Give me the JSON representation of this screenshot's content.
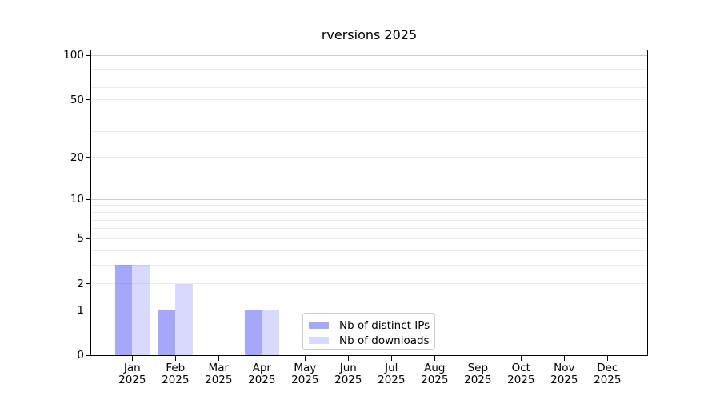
{
  "colors": {
    "background": "#ffffff",
    "axis": "#000000",
    "grid_major": "#cccccc",
    "grid_minor": "#ebebeb",
    "legend_border": "#cccccc",
    "bar_distinct_ips": "rgba(80,80,245,0.50)",
    "bar_downloads": "rgba(80,80,245,0.22)"
  },
  "chart_data": {
    "type": "bar",
    "title": "rversions 2025",
    "categories": [
      "Jan",
      "Feb",
      "Mar",
      "Apr",
      "May",
      "Jun",
      "Jul",
      "Aug",
      "Sep",
      "Oct",
      "Nov",
      "Dec"
    ],
    "x_year": "2025",
    "series": [
      {
        "name": "Nb of distinct IPs",
        "color": "rgba(80,80,245,0.50)",
        "values": [
          3,
          1,
          0,
          1,
          0,
          0,
          0,
          0,
          0,
          0,
          0,
          0
        ]
      },
      {
        "name": "Nb of downloads",
        "color": "rgba(80,80,245,0.22)",
        "values": [
          3,
          2,
          0,
          1,
          0,
          0,
          0,
          0,
          0,
          0,
          0,
          0
        ]
      }
    ],
    "y_ticks": [
      0,
      1,
      2,
      5,
      10,
      20,
      50,
      100
    ],
    "y_scale": "log10(1+x)",
    "ylim": [
      0,
      110
    ],
    "grid_major_values": [
      1,
      10,
      100
    ],
    "grid_minor_values": [
      2,
      3,
      4,
      5,
      6,
      7,
      8,
      9,
      20,
      30,
      40,
      50,
      60,
      70,
      80,
      90
    ],
    "xlabel": "",
    "ylabel": "",
    "grid": "horizontal",
    "legend_position": "inside-bottom-center"
  }
}
